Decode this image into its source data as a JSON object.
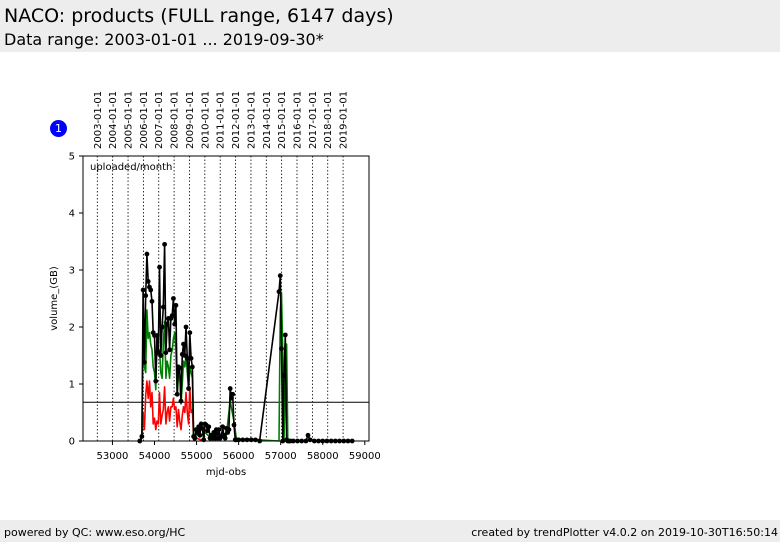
{
  "header": {
    "title": "NACO: products (FULL range, 6147 days)",
    "subtitle": "Data range: 2003-01-01 ... 2019-09-30*"
  },
  "footer": {
    "left": "powered by QC: www.eso.org/HC",
    "right": "created by trendPlotter v4.0.2 on 2019-10-30T16:50:14"
  },
  "badge": {
    "label": "1",
    "color": "#0000ff"
  },
  "chart_data": {
    "type": "line",
    "annotation": "uploaded/month",
    "xlabel": "mjd-obs",
    "ylabel": "volume_(GB)",
    "xlim": [
      52300,
      59100
    ],
    "ylim": [
      0,
      5
    ],
    "x_ticks": [
      53000,
      54000,
      55000,
      56000,
      57000,
      58000,
      59000
    ],
    "y_ticks": [
      0,
      1,
      2,
      3,
      4,
      5
    ],
    "reference_line": 0.68,
    "grid": "vertical dotted lines at year starts",
    "top_axis": {
      "labels": [
        "2003-01-01",
        "2004-01-01",
        "2005-01-01",
        "2006-01-01",
        "2007-01-01",
        "2008-01-01",
        "2009-01-01",
        "2010-01-01",
        "2011-01-01",
        "2012-01-01",
        "2013-01-01",
        "2014-01-01",
        "2015-01-01",
        "2016-01-01",
        "2017-01-01",
        "2018-01-01",
        "2019-01-01"
      ],
      "mjd": [
        52640,
        53005,
        53371,
        53736,
        54101,
        54466,
        54832,
        55197,
        55562,
        55927,
        56293,
        56658,
        57023,
        57388,
        57754,
        58119,
        58484
      ]
    },
    "series": [
      {
        "name": "",
        "color": "#000000",
        "markers": true,
        "x": [
          53650,
          53700,
          53730,
          53760,
          53790,
          53820,
          53850,
          53880,
          53910,
          53940,
          53970,
          54000,
          54030,
          54060,
          54090,
          54120,
          54150,
          54180,
          54210,
          54240,
          54270,
          54300,
          54330,
          54360,
          54390,
          54420,
          54450,
          54480,
          54510,
          54540,
          54570,
          54600,
          54630,
          54660,
          54690,
          54720,
          54750,
          54780,
          54810,
          54840,
          54870,
          54900,
          54930,
          54960,
          54990,
          55020,
          55050,
          55080,
          55110,
          55140,
          55170,
          55200,
          55230,
          55260,
          55290,
          55320,
          55350,
          55380,
          55410,
          55440,
          55470,
          55500,
          55530,
          55560,
          55590,
          55620,
          55650,
          55680,
          55710,
          55740,
          55770,
          55800,
          55830,
          55860,
          55890,
          55920,
          55950,
          56000,
          56100,
          56200,
          56300,
          56400,
          56500,
          56960,
          56990,
          57020,
          57050,
          57080,
          57110,
          57140,
          57170,
          57200,
          57230,
          57300,
          57400,
          57500,
          57600,
          57650,
          57700,
          57800,
          57900,
          58000,
          58100,
          58200,
          58300,
          58400,
          58500,
          58600,
          58700
        ],
        "y": [
          0.0,
          0.08,
          2.65,
          1.38,
          2.55,
          3.28,
          2.8,
          2.7,
          2.65,
          2.45,
          1.9,
          1.85,
          1.05,
          1.85,
          1.55,
          3.05,
          1.5,
          2.0,
          2.35,
          3.45,
          1.55,
          2.05,
          2.15,
          1.6,
          2.15,
          2.2,
          2.5,
          2.05,
          2.38,
          0.82,
          1.3,
          1.28,
          0.7,
          1.52,
          1.7,
          1.5,
          2.0,
          1.45,
          0.92,
          1.9,
          1.45,
          1.3,
          0.08,
          0.05,
          0.2,
          0.15,
          0.25,
          0.1,
          0.3,
          0.22,
          0.02,
          0.3,
          0.28,
          0.18,
          0.25,
          0.05,
          0.1,
          0.05,
          0.15,
          0.05,
          0.2,
          0.05,
          0.2,
          0.05,
          0.08,
          0.25,
          0.1,
          0.05,
          0.22,
          0.15,
          0.2,
          0.92,
          0.75,
          0.82,
          0.28,
          0.02,
          0.02,
          0.02,
          0.02,
          0.02,
          0.02,
          0.02,
          0.0,
          2.62,
          2.9,
          1.62,
          0.0,
          1.15,
          1.86,
          0.02,
          0.0,
          0.0,
          0.0,
          0.0,
          0.0,
          0.0,
          0.0,
          0.1,
          0.02,
          0.0,
          0.0,
          0.0,
          0.0,
          0.0,
          0.0,
          0.0,
          0.0,
          0.0,
          0.0
        ]
      },
      {
        "name": "",
        "color": "#008000",
        "markers": false,
        "x": [
          53650,
          53700,
          53730,
          53760,
          53790,
          53820,
          53850,
          53880,
          53910,
          53940,
          53970,
          54000,
          54030,
          54060,
          54090,
          54120,
          54150,
          54180,
          54210,
          54240,
          54270,
          54300,
          54330,
          54360,
          54390,
          54420,
          54450,
          54480,
          54510,
          54540,
          54570,
          54600,
          54630,
          54660,
          54690,
          54720,
          54750,
          54780,
          54810,
          54840,
          54870,
          54900,
          54930,
          54960,
          55000,
          55100,
          55200,
          55300,
          55400,
          55500,
          55600,
          55700,
          55800,
          55850,
          55900,
          55950,
          56000,
          56100,
          56200,
          56300,
          56400,
          56500,
          56960,
          56990,
          57020,
          57050,
          57080,
          57110,
          57140,
          57170,
          57200
        ],
        "y": [
          0.0,
          0.05,
          2.0,
          1.3,
          1.2,
          2.3,
          1.8,
          1.9,
          1.7,
          1.6,
          1.3,
          1.2,
          0.9,
          1.8,
          1.5,
          1.6,
          1.2,
          1.1,
          1.7,
          2.1,
          1.1,
          1.4,
          1.3,
          1.1,
          1.5,
          1.6,
          1.8,
          1.9,
          1.6,
          0.8,
          1.2,
          1.2,
          0.65,
          1.0,
          1.4,
          1.3,
          1.5,
          1.2,
          0.9,
          1.3,
          1.2,
          1.1,
          0.05,
          0.05,
          0.1,
          0.1,
          0.15,
          0.08,
          0.1,
          0.05,
          0.08,
          0.05,
          0.7,
          0.5,
          0.3,
          0.02,
          0.02,
          0.02,
          0.02,
          0.02,
          0.02,
          0.02,
          0.0,
          2.3,
          2.6,
          1.5,
          0.0,
          1.1,
          1.7,
          0.02,
          0.0
        ]
      },
      {
        "name": "",
        "color": "#ff0000",
        "markers": false,
        "x": [
          53650,
          53700,
          53730,
          53760,
          53790,
          53820,
          53850,
          53880,
          53910,
          53940,
          53970,
          54000,
          54030,
          54060,
          54090,
          54120,
          54150,
          54180,
          54210,
          54240,
          54270,
          54300,
          54330,
          54360,
          54390,
          54420,
          54450,
          54480,
          54510,
          54540,
          54570,
          54600,
          54630,
          54660,
          54690,
          54720,
          54750,
          54780,
          54810,
          54840,
          54870,
          54900,
          54930,
          54960,
          55000,
          55100,
          55200
        ],
        "y": [
          0.0,
          0.05,
          0.5,
          0.2,
          0.8,
          1.05,
          0.75,
          1.05,
          0.6,
          0.85,
          0.3,
          0.4,
          0.2,
          0.35,
          0.3,
          0.85,
          0.3,
          0.45,
          0.55,
          0.95,
          0.3,
          0.5,
          0.6,
          0.35,
          0.6,
          0.6,
          0.75,
          0.55,
          0.6,
          0.25,
          0.55,
          0.35,
          0.2,
          0.45,
          0.6,
          0.5,
          0.85,
          0.5,
          0.3,
          0.95,
          0.5,
          0.55,
          0.02,
          0.02,
          0.05,
          0.02,
          0.0
        ]
      }
    ]
  }
}
